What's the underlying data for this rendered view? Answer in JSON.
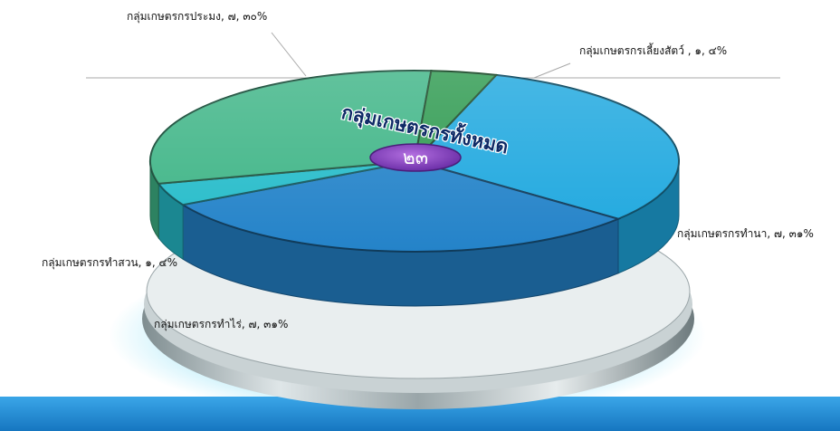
{
  "chart_data": {
    "type": "pie",
    "title": "",
    "center_label": "กลุ่มเกษตรกรทั้งหมด",
    "center_value": "๒๓",
    "slices": [
      {
        "name": "กลุ่มเกษตรกรทำนา",
        "count": 7,
        "percent": 31,
        "color": "#1fa8df",
        "label": "กลุ่มเกษตรกรทำนา, ๗, ๓๑%"
      },
      {
        "name": "กลุ่มเกษตรกรทำไร่",
        "count": 7,
        "percent": 31,
        "color": "#2483c9",
        "label": "กลุ่มเกษตรกรทำไร่, ๗, ๓๑%"
      },
      {
        "name": "กลุ่มเกษตรกรทำสวน",
        "count": 1,
        "percent": 4,
        "color": "#26bcca",
        "label": "กลุ่มเกษตรกรทำสวน, ๑, ๔%"
      },
      {
        "name": "กลุ่มเกษตรกรประมง",
        "count": 7,
        "percent": 30,
        "color": "#3fb587",
        "label": "กลุ่มเกษตรกรประมง, ๗, ๓๐%"
      },
      {
        "name": "กลุ่มเกษตรกรเลี้ยงสัตว์",
        "count": 1,
        "percent": 4,
        "color": "#2e9a50",
        "label": "กลุ่มเกษตรกรเลี้ยงสัตว์ , ๑, ๔%"
      }
    ]
  }
}
